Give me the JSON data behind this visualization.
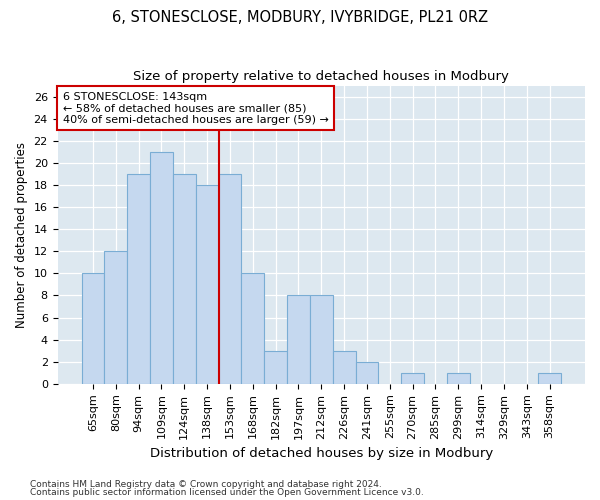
{
  "title": "6, STONESCLOSE, MODBURY, IVYBRIDGE, PL21 0RZ",
  "subtitle": "Size of property relative to detached houses in Modbury",
  "xlabel": "Distribution of detached houses by size in Modbury",
  "ylabel": "Number of detached properties",
  "categories": [
    "65sqm",
    "80sqm",
    "94sqm",
    "109sqm",
    "124sqm",
    "138sqm",
    "153sqm",
    "168sqm",
    "182sqm",
    "197sqm",
    "212sqm",
    "226sqm",
    "241sqm",
    "255sqm",
    "270sqm",
    "285sqm",
    "299sqm",
    "314sqm",
    "329sqm",
    "343sqm",
    "358sqm"
  ],
  "values": [
    10,
    12,
    19,
    21,
    19,
    18,
    19,
    10,
    3,
    8,
    8,
    3,
    2,
    0,
    1,
    0,
    1,
    0,
    0,
    0,
    1
  ],
  "bar_color": "#c5d8ef",
  "bar_edge_color": "#7aadd4",
  "vline_x": 5.5,
  "vline_color": "#cc0000",
  "ylim": [
    0,
    27
  ],
  "yticks": [
    0,
    2,
    4,
    6,
    8,
    10,
    12,
    14,
    16,
    18,
    20,
    22,
    24,
    26
  ],
  "annotation_line1": "6 STONESCLOSE: 143sqm",
  "annotation_line2": "← 58% of detached houses are smaller (85)",
  "annotation_line3": "40% of semi-detached houses are larger (59) →",
  "annotation_box_color": "white",
  "annotation_box_edge": "#cc0000",
  "footer_line1": "Contains HM Land Registry data © Crown copyright and database right 2024.",
  "footer_line2": "Contains public sector information licensed under the Open Government Licence v3.0.",
  "background_color": "#dde8f0",
  "grid_color": "white",
  "title_fontsize": 10.5,
  "subtitle_fontsize": 9.5,
  "xlabel_fontsize": 9.5,
  "ylabel_fontsize": 8.5,
  "tick_fontsize": 8,
  "annotation_fontsize": 8,
  "footer_fontsize": 6.5
}
